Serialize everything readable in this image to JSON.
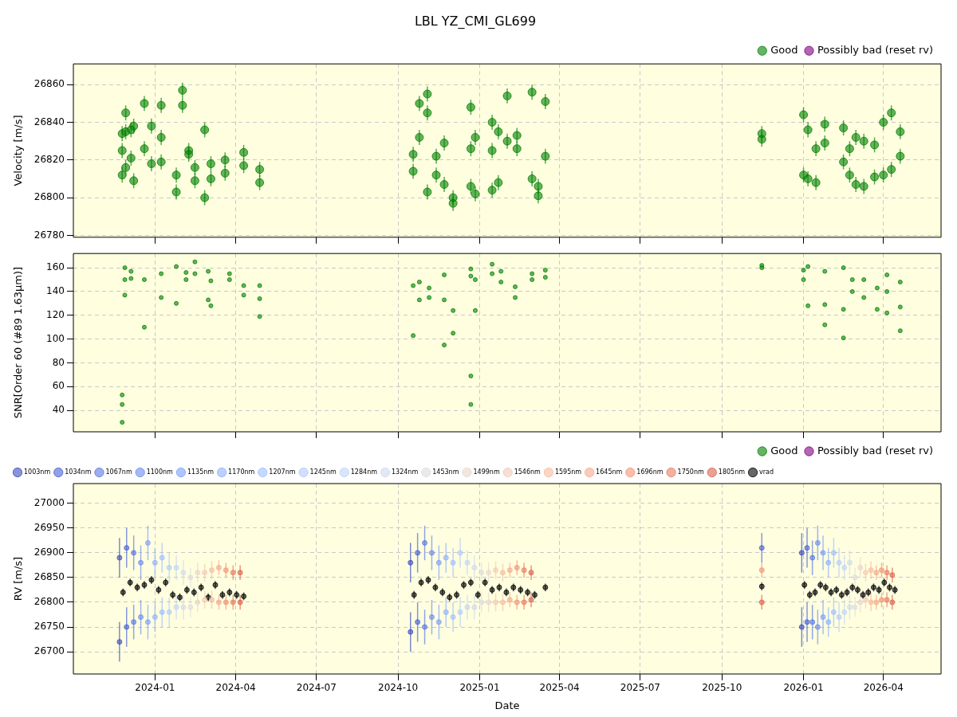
{
  "chart_data": [
    {
      "type": "scatter",
      "title": "LBL YZ_CMI_GL699",
      "ylabel": "Velocity [m/s]",
      "xlim": [
        "2023-10-01",
        "2026-06-05"
      ],
      "xticks": [
        "2024-01",
        "2024-04",
        "2024-07",
        "2024-10",
        "2025-01",
        "2025-04",
        "2025-07",
        "2025-10",
        "2026-01",
        "2026-04"
      ],
      "ylim": [
        26779,
        26871
      ],
      "yticks": [
        26780,
        26800,
        26820,
        26840,
        26860
      ],
      "grid": true,
      "legend": "top right",
      "marker": "circle",
      "tick_labels": "y",
      "series": [
        {
          "name": "Good",
          "color": "#008000",
          "x": [
            "2023-11-25",
            "2023-11-25",
            "2023-11-25",
            "2023-11-29",
            "2023-11-29",
            "2023-11-29",
            "2023-12-05",
            "2023-12-05",
            "2023-12-08",
            "2023-12-08",
            "2023-12-20",
            "2023-12-20",
            "2023-12-28",
            "2023-12-28",
            "2024-01-08",
            "2024-01-08",
            "2024-01-08",
            "2024-01-25",
            "2024-01-25",
            "2024-02-01",
            "2024-02-01",
            "2024-02-08",
            "2024-02-08",
            "2024-02-15",
            "2024-02-15",
            "2024-02-26",
            "2024-02-26",
            "2024-03-04",
            "2024-03-04",
            "2024-03-20",
            "2024-03-20",
            "2024-04-10",
            "2024-04-10",
            "2024-04-28",
            "2024-04-28",
            "2024-10-18",
            "2024-10-18",
            "2024-10-25",
            "2024-10-25",
            "2024-11-03",
            "2024-11-03",
            "2024-11-03",
            "2024-11-13",
            "2024-11-13",
            "2024-11-22",
            "2024-11-22",
            "2024-12-02",
            "2024-12-02",
            "2024-12-22",
            "2024-12-22",
            "2024-12-22",
            "2024-12-27",
            "2024-12-27",
            "2025-01-15",
            "2025-01-15",
            "2025-01-15",
            "2025-01-22",
            "2025-01-22",
            "2025-02-01",
            "2025-02-01",
            "2025-02-12",
            "2025-02-12",
            "2025-03-01",
            "2025-03-01",
            "2025-03-08",
            "2025-03-08",
            "2025-03-16",
            "2025-03-16",
            "2025-11-15",
            "2025-11-15",
            "2026-01-01",
            "2026-01-01",
            "2026-01-06",
            "2026-01-06",
            "2026-01-15",
            "2026-01-15",
            "2026-01-25",
            "2026-01-25",
            "2026-02-15",
            "2026-02-15",
            "2026-02-22",
            "2026-02-22",
            "2026-03-01",
            "2026-03-01",
            "2026-03-10",
            "2026-03-10",
            "2026-03-22",
            "2026-03-22",
            "2026-04-01",
            "2026-04-01",
            "2026-04-10",
            "2026-04-10",
            "2026-04-20",
            "2026-04-20"
          ],
          "values": [
            26834,
            26812,
            26825,
            26845,
            26816,
            26835,
            26836,
            26821,
            26838,
            26809,
            26850,
            26826,
            26838,
            26818,
            26849,
            26832,
            26819,
            26812,
            26803,
            26857,
            26849,
            26825,
            26823,
            26816,
            26809,
            26800,
            26836,
            26818,
            26810,
            26820,
            26813,
            26824,
            26817,
            26815,
            26808,
            26814,
            26823,
            26850,
            26832,
            26803,
            26845,
            26855,
            26822,
            26812,
            26829,
            26807,
            26797,
            26800,
            26848,
            26806,
            26826,
            26832,
            26802,
            26840,
            26804,
            26825,
            26835,
            26808,
            26854,
            26830,
            26826,
            26833,
            26856,
            26810,
            26806,
            26801,
            26851,
            26822,
            26834,
            26831,
            26844,
            26812,
            26836,
            26810,
            26826,
            26808,
            26829,
            26839,
            26819,
            26837,
            26826,
            26812,
            26832,
            26807,
            26830,
            26806,
            26828,
            26811,
            26840,
            26812,
            26845,
            26815,
            26835,
            26822
          ],
          "errors": [
            4,
            4,
            4,
            4,
            4,
            4,
            4,
            4,
            4,
            4,
            4,
            4,
            4,
            4,
            4,
            4,
            4,
            4,
            4,
            4,
            4,
            4,
            4,
            4,
            4,
            4,
            4,
            4,
            4,
            4,
            4,
            4,
            4,
            4,
            4,
            4,
            4,
            4,
            4,
            4,
            4,
            4,
            4,
            4,
            4,
            4,
            4,
            4,
            4,
            4,
            4,
            4,
            4,
            4,
            4,
            4,
            4,
            4,
            4,
            4,
            4,
            4,
            4,
            4,
            4,
            4,
            4,
            4,
            4,
            4,
            4,
            4,
            4,
            4,
            4,
            4,
            4,
            4,
            4,
            4,
            4,
            4,
            4,
            4,
            4,
            4,
            4,
            4,
            4,
            4,
            4,
            4,
            4,
            4
          ]
        },
        {
          "name": "Possibly bad (reset rv)",
          "color": "#800080"
        }
      ]
    },
    {
      "type": "scatter",
      "ylabel": "SNR[Order 60 (#89 1.63μm)]",
      "xlim": [
        "2023-10-01",
        "2026-06-05"
      ],
      "xticks": [
        "2024-01",
        "2024-04",
        "2024-07",
        "2024-10",
        "2025-01",
        "2025-04",
        "2025-07",
        "2025-10",
        "2026-01",
        "2026-04"
      ],
      "ylim": [
        22,
        172
      ],
      "yticks": [
        40,
        60,
        80,
        100,
        120,
        140,
        160
      ],
      "grid": true,
      "legend": "bottom right",
      "marker": "circle",
      "tick_labels": "y",
      "series": [
        {
          "name": "Good",
          "color": "#008000",
          "x": [
            "2023-11-25",
            "2023-11-25",
            "2023-11-25",
            "2023-11-28",
            "2023-11-28",
            "2023-11-28",
            "2023-12-05",
            "2023-12-05",
            "2023-12-20",
            "2023-12-20",
            "2024-01-08",
            "2024-01-08",
            "2024-01-25",
            "2024-01-25",
            "2024-02-05",
            "2024-02-05",
            "2024-02-15",
            "2024-02-15",
            "2024-03-01",
            "2024-03-01",
            "2024-03-04",
            "2024-03-04",
            "2024-03-25",
            "2024-03-25",
            "2024-04-10",
            "2024-04-10",
            "2024-04-28",
            "2024-04-28",
            "2024-04-28",
            "2024-10-18",
            "2024-10-18",
            "2024-10-25",
            "2024-10-25",
            "2024-11-05",
            "2024-11-05",
            "2024-11-22",
            "2024-11-22",
            "2024-11-22",
            "2024-12-02",
            "2024-12-02",
            "2024-12-22",
            "2024-12-22",
            "2024-12-22",
            "2024-12-22",
            "2024-12-27",
            "2024-12-27",
            "2025-01-15",
            "2025-01-15",
            "2025-01-25",
            "2025-01-25",
            "2025-02-10",
            "2025-02-10",
            "2025-03-01",
            "2025-03-01",
            "2025-03-16",
            "2025-03-16",
            "2025-11-15",
            "2025-11-15",
            "2026-01-01",
            "2026-01-01",
            "2026-01-06",
            "2026-01-06",
            "2026-01-25",
            "2026-01-25",
            "2026-01-25",
            "2026-02-15",
            "2026-02-15",
            "2026-02-15",
            "2026-02-25",
            "2026-02-25",
            "2026-03-10",
            "2026-03-10",
            "2026-03-25",
            "2026-03-25",
            "2026-04-05",
            "2026-04-05",
            "2026-04-05",
            "2026-04-20",
            "2026-04-20",
            "2026-04-20"
          ],
          "values": [
            53,
            45,
            30,
            160,
            150,
            137,
            157,
            151,
            150,
            110,
            155,
            135,
            161,
            130,
            156,
            150,
            165,
            155,
            157,
            133,
            149,
            128,
            155,
            150,
            145,
            137,
            145,
            134,
            119,
            145,
            103,
            148,
            133,
            143,
            135,
            154,
            133,
            95,
            124,
            105,
            159,
            153,
            69,
            45,
            150,
            124,
            163,
            155,
            157,
            148,
            144,
            135,
            155,
            150,
            158,
            152,
            162,
            160,
            158,
            150,
            161,
            128,
            157,
            129,
            112,
            160,
            125,
            101,
            150,
            140,
            150,
            135,
            143,
            125,
            154,
            140,
            122,
            148,
            127,
            107
          ]
        },
        {
          "name": "Possibly bad (reset rv)",
          "color": "#800080"
        }
      ]
    },
    {
      "type": "scatter",
      "ylabel": "RV [m/s]",
      "xlabel": "Date",
      "xlim": [
        "2023-10-01",
        "2026-06-05"
      ],
      "xticks": [
        "2024-01",
        "2024-04",
        "2024-07",
        "2024-10",
        "2025-01",
        "2025-04",
        "2025-07",
        "2025-10",
        "2026-01",
        "2026-04"
      ],
      "ylim": [
        26655,
        27040
      ],
      "yticks": [
        26700,
        26750,
        26800,
        26850,
        26900,
        26950,
        27000
      ],
      "grid": true,
      "legend": "top left",
      "marker": "circle",
      "series": [
        {
          "name": "1003nm",
          "color": "#3b4cc0",
          "x": [
            "2023-11-22",
            "2023-11-22",
            "2024-10-15",
            "2024-10-15",
            "2025-12-30",
            "2025-12-30"
          ],
          "values": [
            26890,
            26720,
            26880,
            26740,
            26900,
            26750
          ],
          "errors": [
            40,
            40,
            40,
            40,
            40,
            40
          ]
        },
        {
          "name": "1034nm",
          "color": "#4961d2",
          "x": [
            "2023-11-30",
            "2023-11-30",
            "2024-10-23",
            "2024-10-23",
            "2025-11-15",
            "2026-01-05",
            "2026-01-05"
          ],
          "values": [
            26910,
            26750,
            26900,
            26760,
            26910,
            26910,
            26760
          ],
          "errors": [
            40,
            40,
            40,
            40,
            30,
            40,
            40
          ]
        },
        {
          "name": "1067nm",
          "color": "#5977e3",
          "x": [
            "2023-12-08",
            "2023-12-08",
            "2024-10-31",
            "2024-10-31",
            "2026-01-11",
            "2026-01-11"
          ],
          "values": [
            26900,
            26760,
            26920,
            26750,
            26890,
            26760
          ],
          "errors": [
            35,
            35,
            35,
            35,
            35,
            35
          ]
        },
        {
          "name": "1100nm",
          "color": "#6a8bef",
          "x": [
            "2023-12-16",
            "2023-12-16",
            "2024-11-08",
            "2024-11-08",
            "2026-01-17",
            "2026-01-17"
          ],
          "values": [
            26880,
            26770,
            26900,
            26770,
            26920,
            26750
          ],
          "errors": [
            35,
            35,
            35,
            35,
            35,
            35
          ]
        },
        {
          "name": "1135nm",
          "color": "#7b9ff9",
          "x": [
            "2023-12-24",
            "2023-12-24",
            "2024-11-16",
            "2024-11-16",
            "2026-01-23",
            "2026-01-23"
          ],
          "values": [
            26920,
            26760,
            26880,
            26760,
            26900,
            26770
          ],
          "errors": [
            35,
            35,
            35,
            35,
            35,
            35
          ]
        },
        {
          "name": "1170nm",
          "color": "#8db0fe",
          "x": [
            "2024-01-01",
            "2024-01-01",
            "2024-11-24",
            "2024-11-24",
            "2026-01-29",
            "2026-01-29"
          ],
          "values": [
            26880,
            26770,
            26890,
            26780,
            26880,
            26760
          ],
          "errors": [
            30,
            30,
            30,
            30,
            30,
            30
          ]
        },
        {
          "name": "1207nm",
          "color": "#9ebeff",
          "x": [
            "2024-01-09",
            "2024-01-09",
            "2024-12-02",
            "2024-12-02",
            "2026-02-04",
            "2026-02-04"
          ],
          "values": [
            26890,
            26780,
            26880,
            26770,
            26900,
            26780
          ],
          "errors": [
            30,
            30,
            30,
            30,
            30,
            30
          ]
        },
        {
          "name": "1245nm",
          "color": "#b0cbfc",
          "x": [
            "2024-01-17",
            "2024-01-17",
            "2024-12-10",
            "2024-12-10",
            "2026-02-10",
            "2026-02-10"
          ],
          "values": [
            26870,
            26780,
            26900,
            26780,
            26880,
            26770
          ],
          "errors": [
            30,
            30,
            30,
            30,
            30,
            30
          ]
        },
        {
          "name": "1284nm",
          "color": "#c0d4f5",
          "x": [
            "2024-01-25",
            "2024-01-25",
            "2024-12-18",
            "2024-12-18",
            "2026-02-16",
            "2026-02-16"
          ],
          "values": [
            26870,
            26790,
            26880,
            26790,
            26870,
            26780
          ],
          "errors": [
            25,
            25,
            25,
            25,
            25,
            25
          ]
        },
        {
          "name": "1324nm",
          "color": "#cfdaea",
          "x": [
            "2024-02-02",
            "2024-02-02",
            "2024-12-26",
            "2024-12-26",
            "2026-02-22",
            "2026-02-22"
          ],
          "values": [
            26860,
            26790,
            26870,
            26790,
            26880,
            26790
          ],
          "errors": [
            25,
            25,
            25,
            25,
            25,
            25
          ]
        },
        {
          "name": "1453nm",
          "color": "#dddcdc",
          "x": [
            "2024-02-10",
            "2024-02-10",
            "2025-01-03",
            "2025-01-03",
            "2026-02-28",
            "2026-02-28"
          ],
          "values": [
            26850,
            26790,
            26860,
            26800,
            26850,
            26790
          ],
          "errors": [
            20,
            20,
            20,
            20,
            20,
            20
          ]
        },
        {
          "name": "1499nm",
          "color": "#e9d5cb",
          "x": [
            "2024-02-18",
            "2024-02-18",
            "2025-01-11",
            "2025-01-11",
            "2026-03-06",
            "2026-03-06"
          ],
          "values": [
            26860,
            26800,
            26860,
            26800,
            26870,
            26800
          ],
          "errors": [
            20,
            20,
            20,
            20,
            20,
            20
          ]
        },
        {
          "name": "1546nm",
          "color": "#f2cab5",
          "x": [
            "2024-02-26",
            "2024-02-26",
            "2025-01-19",
            "2025-01-19",
            "2026-03-12",
            "2026-03-12"
          ],
          "values": [
            26860,
            26805,
            26865,
            26800,
            26860,
            26805
          ],
          "errors": [
            18,
            18,
            18,
            18,
            18,
            18
          ]
        },
        {
          "name": "1595nm",
          "color": "#f6bb9f",
          "x": [
            "2024-03-05",
            "2024-03-05",
            "2025-01-27",
            "2025-01-27",
            "2026-03-18",
            "2026-03-18"
          ],
          "values": [
            26865,
            26805,
            26860,
            26800,
            26865,
            26800
          ],
          "errors": [
            18,
            18,
            18,
            18,
            18,
            18
          ]
        },
        {
          "name": "1645nm",
          "color": "#f7a889",
          "x": [
            "2024-03-13",
            "2024-03-13",
            "2025-02-04",
            "2025-02-04",
            "2026-03-24",
            "2026-03-24"
          ],
          "values": [
            26870,
            26800,
            26865,
            26805,
            26860,
            26800
          ],
          "errors": [
            15,
            15,
            15,
            15,
            15,
            15
          ]
        },
        {
          "name": "1696nm",
          "color": "#f39475",
          "x": [
            "2024-03-21",
            "2024-03-21",
            "2025-02-12",
            "2025-02-12",
            "2025-11-15",
            "2026-03-30",
            "2026-03-30"
          ],
          "values": [
            26865,
            26800,
            26870,
            26800,
            26865,
            26865,
            26805
          ],
          "errors": [
            15,
            15,
            15,
            15,
            15,
            15,
            15
          ]
        },
        {
          "name": "1750nm",
          "color": "#ea7b60",
          "x": [
            "2024-03-29",
            "2024-03-29",
            "2025-02-20",
            "2025-02-20",
            "2026-04-05",
            "2026-04-05"
          ],
          "values": [
            26860,
            26800,
            26865,
            26800,
            26860,
            26805
          ],
          "errors": [
            15,
            15,
            15,
            15,
            15,
            15
          ]
        },
        {
          "name": "1805nm",
          "color": "#de614d",
          "x": [
            "2024-04-06",
            "2024-04-06",
            "2025-02-28",
            "2025-02-28",
            "2025-11-15",
            "2026-04-11",
            "2026-04-11"
          ],
          "values": [
            26860,
            26800,
            26860,
            26805,
            26800,
            26855,
            26800
          ],
          "errors": [
            15,
            15,
            15,
            15,
            15,
            15,
            15
          ]
        },
        {
          "name": "vrad",
          "color": "#000000",
          "x": [
            "2023-11-26",
            "2023-12-04",
            "2023-12-12",
            "2023-12-20",
            "2023-12-28",
            "2024-01-05",
            "2024-01-13",
            "2024-01-21",
            "2024-01-29",
            "2024-02-06",
            "2024-02-14",
            "2024-02-22",
            "2024-03-01",
            "2024-03-09",
            "2024-03-17",
            "2024-03-25",
            "2024-04-02",
            "2024-04-10",
            "2024-10-19",
            "2024-10-27",
            "2024-11-04",
            "2024-11-12",
            "2024-11-20",
            "2024-11-28",
            "2024-12-06",
            "2024-12-14",
            "2024-12-22",
            "2024-12-30",
            "2025-01-07",
            "2025-01-15",
            "2025-01-23",
            "2025-01-31",
            "2025-02-08",
            "2025-02-16",
            "2025-02-24",
            "2025-03-04",
            "2025-03-16",
            "2025-11-15",
            "2026-01-02",
            "2026-01-08",
            "2026-01-14",
            "2026-01-20",
            "2026-01-26",
            "2026-02-01",
            "2026-02-07",
            "2026-02-13",
            "2026-02-19",
            "2026-02-25",
            "2026-03-03",
            "2026-03-09",
            "2026-03-15",
            "2026-03-21",
            "2026-03-27",
            "2026-04-02",
            "2026-04-08",
            "2026-04-14"
          ],
          "values": [
            26820,
            26840,
            26830,
            26835,
            26845,
            26825,
            26840,
            26815,
            26810,
            26825,
            26820,
            26830,
            26810,
            26835,
            26815,
            26820,
            26815,
            26812,
            26815,
            26840,
            26845,
            26830,
            26820,
            26810,
            26815,
            26835,
            26840,
            26815,
            26840,
            26825,
            26830,
            26820,
            26830,
            26825,
            26820,
            26815,
            26830,
            26832,
            26835,
            26815,
            26820,
            26835,
            26830,
            26820,
            26825,
            26815,
            26820,
            26830,
            26825,
            26815,
            26820,
            26830,
            26825,
            26840,
            26830,
            26825
          ],
          "errors": [
            8,
            8,
            8,
            8,
            8,
            8,
            8,
            8,
            8,
            8,
            8,
            8,
            8,
            8,
            8,
            8,
            8,
            8,
            8,
            8,
            8,
            8,
            8,
            8,
            8,
            8,
            8,
            8,
            8,
            8,
            8,
            8,
            8,
            8,
            8,
            8,
            8,
            8,
            8,
            8,
            8,
            8,
            8,
            8,
            8,
            8,
            8,
            8,
            8,
            8,
            8,
            8,
            8,
            8,
            8,
            8
          ]
        }
      ]
    }
  ]
}
